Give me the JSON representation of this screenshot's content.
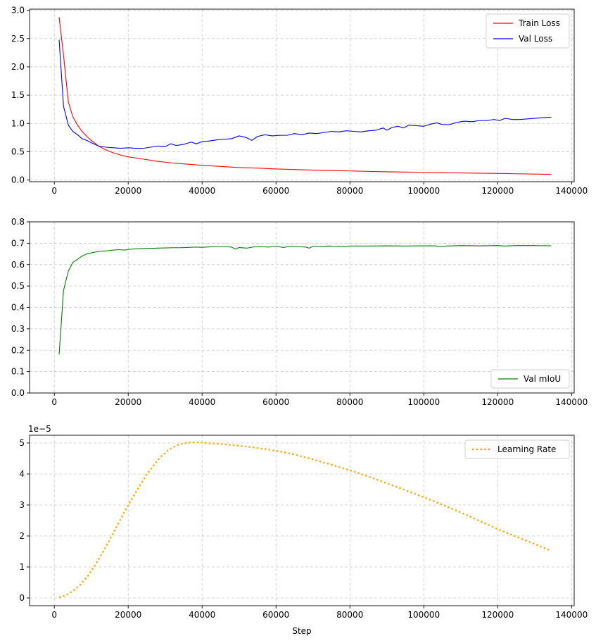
{
  "chart_data": [
    {
      "type": "line",
      "xlim": [
        -6700,
        140700
      ],
      "ylim": [
        -0.03,
        3.02
      ],
      "grid": true,
      "legend_position": "top-right",
      "xticks": [
        0,
        20000,
        40000,
        60000,
        80000,
        100000,
        120000,
        140000
      ],
      "yticks": [
        0.0,
        0.5,
        1.0,
        1.5,
        2.0,
        2.5,
        3.0
      ],
      "ytick_labels": [
        "0.0",
        "0.5",
        "1.0",
        "1.5",
        "2.0",
        "2.5",
        "3.0"
      ],
      "series": [
        {
          "name": "Train Loss",
          "color": "#ff0000",
          "style": "solid",
          "x": [
            1300,
            2500,
            3800,
            5000,
            6300,
            7500,
            8800,
            10000,
            12000,
            14000,
            16000,
            18000,
            20000,
            24000,
            28000,
            32000,
            36000,
            40000,
            45000,
            50000,
            55000,
            60000,
            65000,
            70000,
            75000,
            80000,
            85000,
            90000,
            95000,
            100000,
            105000,
            110000,
            115000,
            120000,
            125000,
            130000,
            134500
          ],
          "y": [
            2.88,
            2.2,
            1.38,
            1.12,
            0.97,
            0.86,
            0.77,
            0.7,
            0.6,
            0.53,
            0.48,
            0.44,
            0.41,
            0.37,
            0.33,
            0.3,
            0.28,
            0.26,
            0.24,
            0.22,
            0.21,
            0.195,
            0.185,
            0.175,
            0.168,
            0.16,
            0.152,
            0.145,
            0.14,
            0.135,
            0.13,
            0.125,
            0.12,
            0.115,
            0.11,
            0.105,
            0.1
          ]
        },
        {
          "name": "Val Loss",
          "color": "#0000ff",
          "style": "solid",
          "x": [
            1300,
            2500,
            3800,
            5000,
            6300,
            7500,
            8800,
            10000,
            12000,
            14000,
            16000,
            18000,
            20000,
            22000,
            24000,
            26000,
            28000,
            30000,
            31500,
            33000,
            35000,
            37000,
            38500,
            40000,
            42000,
            44000,
            46000,
            48000,
            50000,
            52000,
            53500,
            55000,
            57000,
            59000,
            61000,
            63000,
            65000,
            67000,
            69000,
            71000,
            73000,
            75000,
            77000,
            79000,
            81000,
            83000,
            85000,
            87000,
            89000,
            90000,
            91500,
            93000,
            94500,
            96000,
            98000,
            100000,
            102000,
            103500,
            105000,
            107000,
            109000,
            111000,
            113000,
            115000,
            117000,
            119000,
            120500,
            122000,
            124000,
            126000,
            128000,
            130000,
            132000,
            134500
          ],
          "y": [
            2.48,
            1.3,
            0.97,
            0.86,
            0.8,
            0.73,
            0.7,
            0.66,
            0.6,
            0.58,
            0.57,
            0.56,
            0.57,
            0.56,
            0.56,
            0.58,
            0.6,
            0.59,
            0.64,
            0.61,
            0.63,
            0.67,
            0.64,
            0.68,
            0.69,
            0.71,
            0.72,
            0.73,
            0.78,
            0.75,
            0.7,
            0.77,
            0.8,
            0.78,
            0.79,
            0.79,
            0.82,
            0.8,
            0.83,
            0.82,
            0.84,
            0.86,
            0.85,
            0.87,
            0.86,
            0.85,
            0.87,
            0.88,
            0.92,
            0.88,
            0.93,
            0.95,
            0.92,
            0.97,
            0.96,
            0.95,
            0.99,
            1.01,
            0.98,
            0.98,
            1.02,
            1.04,
            1.03,
            1.05,
            1.05,
            1.07,
            1.05,
            1.09,
            1.07,
            1.07,
            1.08,
            1.09,
            1.1,
            1.11
          ]
        }
      ]
    },
    {
      "type": "line",
      "xlim": [
        -6700,
        140700
      ],
      "ylim": [
        0.0,
        0.8
      ],
      "grid": true,
      "legend_position": "bottom-right",
      "xticks": [
        0,
        20000,
        40000,
        60000,
        80000,
        100000,
        120000,
        140000
      ],
      "yticks": [
        0.0,
        0.1,
        0.2,
        0.3,
        0.4,
        0.5,
        0.6,
        0.7,
        0.8
      ],
      "ytick_labels": [
        "0.0",
        "0.1",
        "0.2",
        "0.3",
        "0.4",
        "0.5",
        "0.6",
        "0.7",
        "0.8"
      ],
      "series": [
        {
          "name": "Val mIoU",
          "color": "#008000",
          "style": "solid",
          "x": [
            1300,
            2500,
            3800,
            5000,
            6300,
            7500,
            8800,
            10000,
            11500,
            13000,
            14500,
            16000,
            17500,
            19000,
            20500,
            22000,
            24000,
            26000,
            28000,
            30000,
            32000,
            34000,
            36000,
            38000,
            40000,
            42000,
            44000,
            46000,
            48000,
            49000,
            50000,
            52000,
            54000,
            56000,
            58000,
            60000,
            62000,
            64000,
            66000,
            68000,
            69000,
            70000,
            72000,
            74000,
            76000,
            78000,
            80000,
            85000,
            90000,
            95000,
            100000,
            103000,
            104500,
            106000,
            108000,
            110000,
            115000,
            120000,
            122000,
            125000,
            130000,
            134500
          ],
          "y": [
            0.18,
            0.48,
            0.57,
            0.61,
            0.625,
            0.64,
            0.65,
            0.655,
            0.66,
            0.663,
            0.665,
            0.668,
            0.67,
            0.668,
            0.672,
            0.674,
            0.675,
            0.676,
            0.677,
            0.678,
            0.679,
            0.679,
            0.68,
            0.682,
            0.681,
            0.683,
            0.684,
            0.684,
            0.682,
            0.673,
            0.68,
            0.677,
            0.683,
            0.684,
            0.682,
            0.686,
            0.68,
            0.686,
            0.684,
            0.682,
            0.677,
            0.686,
            0.685,
            0.687,
            0.686,
            0.685,
            0.687,
            0.687,
            0.688,
            0.687,
            0.688,
            0.688,
            0.684,
            0.687,
            0.688,
            0.689,
            0.688,
            0.689,
            0.687,
            0.689,
            0.689,
            0.688
          ]
        }
      ]
    },
    {
      "type": "line",
      "xlim": [
        -6700,
        140700
      ],
      "ylim": [
        -0.25,
        5.25
      ],
      "grid": true,
      "legend_position": "top-right",
      "xlabel": "Step",
      "y_offset_text": "1e−5",
      "xticks": [
        0,
        20000,
        40000,
        60000,
        80000,
        100000,
        120000,
        140000
      ],
      "yticks": [
        0,
        1,
        2,
        3,
        4,
        5
      ],
      "ytick_labels": [
        "0",
        "1",
        "2",
        "3",
        "4",
        "5"
      ],
      "series": [
        {
          "name": "Learning Rate",
          "color": "#ffa500",
          "style": "dotted",
          "x": [
            1300,
            3000,
            5000,
            7000,
            9000,
            11000,
            13000,
            15000,
            17000,
            19000,
            21000,
            23000,
            25000,
            27000,
            29000,
            31000,
            33000,
            35000,
            37000,
            39000,
            41000,
            45000,
            50000,
            55000,
            60000,
            65000,
            70000,
            75000,
            80000,
            85000,
            90000,
            95000,
            100000,
            105000,
            110000,
            115000,
            120000,
            125000,
            130000,
            134500
          ],
          "y": [
            0.02,
            0.08,
            0.22,
            0.42,
            0.7,
            1.05,
            1.45,
            1.88,
            2.33,
            2.78,
            3.2,
            3.6,
            3.98,
            4.3,
            4.58,
            4.78,
            4.92,
            4.99,
            5.02,
            5.02,
            5.0,
            4.97,
            4.91,
            4.84,
            4.75,
            4.63,
            4.47,
            4.3,
            4.12,
            3.92,
            3.7,
            3.48,
            3.25,
            3.01,
            2.76,
            2.49,
            2.22,
            1.98,
            1.74,
            1.52
          ]
        }
      ]
    }
  ]
}
